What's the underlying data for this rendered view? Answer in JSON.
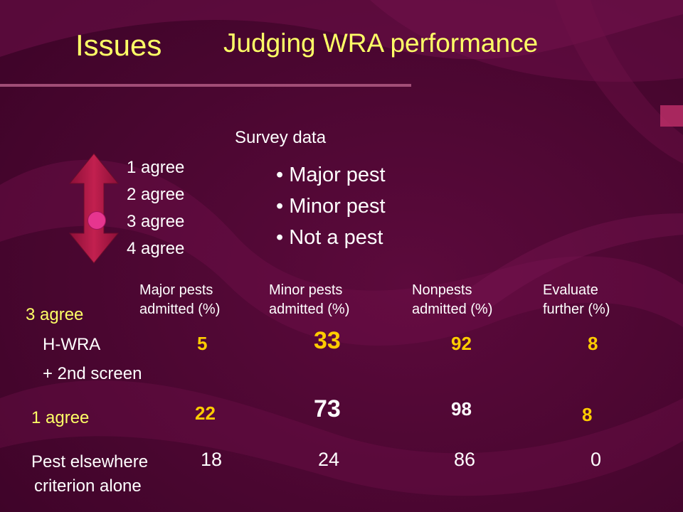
{
  "slide": {
    "title": "Issues",
    "subtitle": "Judging WRA performance",
    "survey_label": "Survey data",
    "scale_items": [
      "1 agree",
      "2 agree",
      "3 agree",
      "4 agree"
    ],
    "bullets": [
      "Major pest",
      "Minor pest",
      "Not a pest"
    ],
    "columns": [
      {
        "line1": "Major pests",
        "line2": "admitted (%)"
      },
      {
        "line1": "Minor pests",
        "line2": "admitted (%)"
      },
      {
        "line1": "Nonpests",
        "line2": "admitted (%)"
      },
      {
        "line1": "Evaluate",
        "line2": "further (%)"
      }
    ],
    "rows": {
      "r1": {
        "label_top": "3 agree",
        "label_a": "H-WRA",
        "label_b": "+ 2nd screen",
        "values": [
          "5",
          "33",
          "92",
          "8"
        ]
      },
      "r2": {
        "label": "1 agree",
        "values": [
          "22",
          "73",
          "98",
          "8"
        ]
      },
      "r3": {
        "label_a": "Pest elsewhere",
        "label_b": "criterion alone",
        "values": [
          "18",
          "24",
          "86",
          "0"
        ]
      }
    },
    "colors": {
      "background": "#4a0530",
      "title": "#ffff66",
      "highlight": "#ffcc00",
      "arrow": "#b8194f",
      "marker": "#e6358f"
    }
  }
}
